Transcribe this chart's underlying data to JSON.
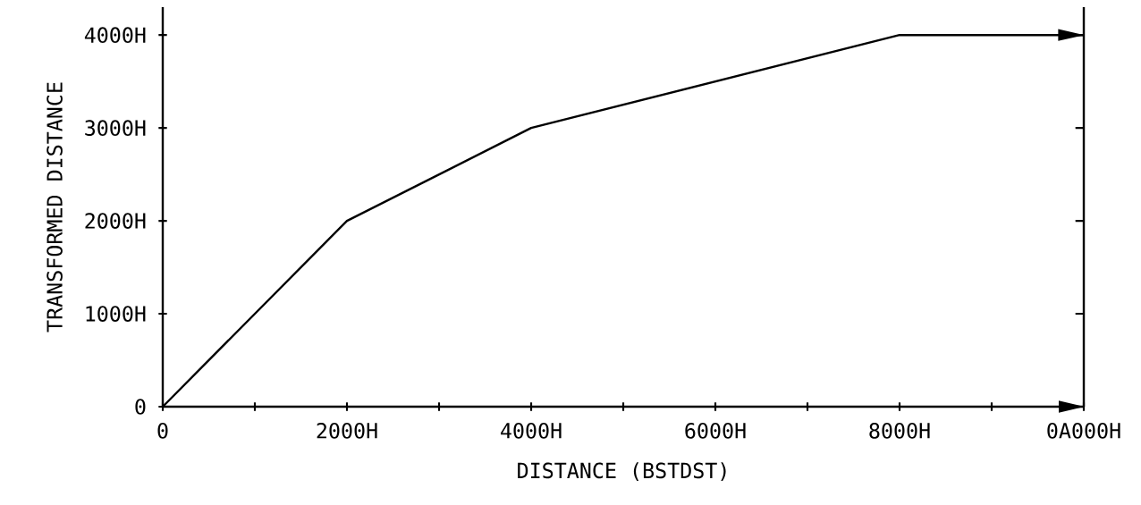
{
  "chart_data": {
    "type": "line",
    "xlabel": "DISTANCE (BSTDST)",
    "ylabel": "TRANSFORMED DISTANCE",
    "x": [
      0,
      2000,
      4000,
      8000,
      10000
    ],
    "series": [
      {
        "color": "#000000",
        "values": [
          0,
          2000,
          3000,
          4000,
          4000
        ]
      }
    ],
    "xlim": [
      0,
      10000
    ],
    "ylim": [
      0,
      4300
    ],
    "xticks": [
      0,
      {
        "value": 1000,
        "label": null
      },
      {
        "value": 2000,
        "label": "2000H"
      },
      {
        "value": 3000,
        "label": null
      },
      {
        "value": 4000,
        "label": "4000H"
      },
      {
        "value": 5000,
        "label": null
      },
      {
        "value": 6000,
        "label": "6000H"
      },
      {
        "value": 7000,
        "label": null
      },
      {
        "value": 8000,
        "label": "8000H"
      },
      {
        "value": 9000,
        "label": null
      },
      {
        "value": 10000,
        "label": "0A000H"
      }
    ],
    "yticks": [
      0,
      {
        "value": 1000,
        "label": "1000H"
      },
      {
        "value": 2000,
        "label": "2000H"
      },
      {
        "value": 3000,
        "label": "3000H"
      },
      {
        "value": 4000,
        "label": "4000H"
      }
    ],
    "grid": false,
    "marker": "none",
    "line_style": "solid"
  }
}
